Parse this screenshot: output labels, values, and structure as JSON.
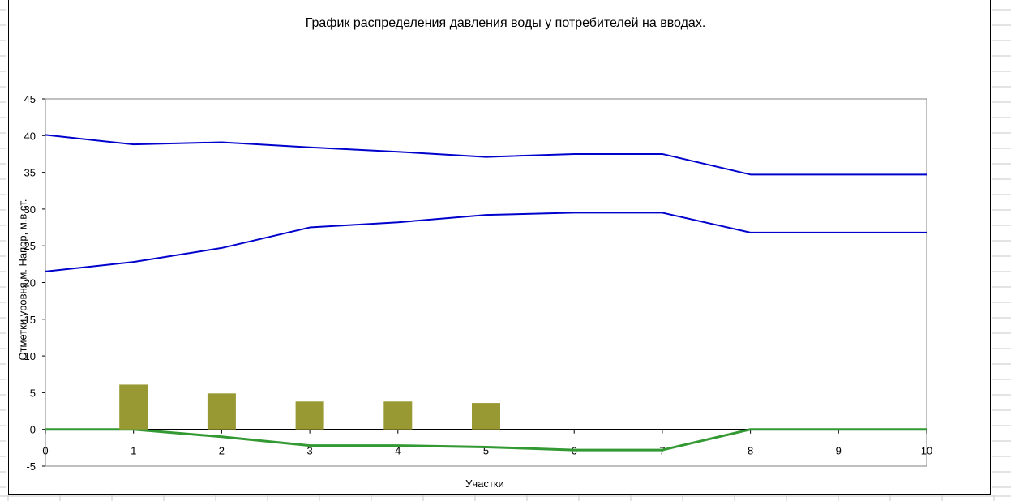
{
  "chart_data": {
    "type": "line",
    "title": "График распределения давления воды у потребителей на вводах.",
    "xlabel": "Участки",
    "ylabel": "Отметки уровня,м.    Напор, м.в.ст.",
    "x": [
      0,
      1,
      2,
      3,
      4,
      5,
      6,
      7,
      8,
      9,
      10
    ],
    "xlim": [
      0,
      10
    ],
    "ylim": [
      -5,
      45
    ],
    "yticks": [
      -5,
      0,
      5,
      10,
      15,
      20,
      25,
      30,
      35,
      40,
      45
    ],
    "xticks": [
      0,
      1,
      2,
      3,
      4,
      5,
      6,
      7,
      8,
      9,
      10
    ],
    "grid": false,
    "series": [
      {
        "kind": "line",
        "color": "#0000cc",
        "values": [
          40.1,
          38.8,
          39.1,
          38.4,
          37.8,
          37.1,
          37.5,
          37.5,
          34.7,
          34.7,
          34.7
        ]
      },
      {
        "kind": "line",
        "color": "#0000cc",
        "values": [
          21.5,
          22.8,
          24.7,
          27.5,
          28.2,
          29.2,
          29.5,
          29.5,
          26.8,
          26.8,
          26.8
        ]
      },
      {
        "kind": "line",
        "color": "#339933",
        "values": [
          0,
          0,
          -1.0,
          -2.2,
          -2.2,
          -2.4,
          -2.8,
          -2.8,
          0,
          0,
          0
        ]
      },
      {
        "kind": "bar",
        "color": "#999933",
        "x": [
          1,
          2,
          3,
          4,
          5
        ],
        "values": [
          6.1,
          4.9,
          3.8,
          3.8,
          3.6
        ]
      }
    ],
    "baseline": {
      "y": 0,
      "color": "#000000"
    }
  }
}
